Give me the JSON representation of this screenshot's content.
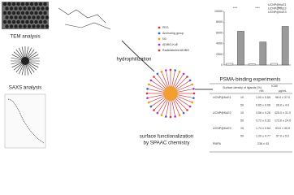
{
  "labels": {
    "tem": "TEM analysis",
    "saxs": "SAXS analysis",
    "hydro": "hydrophilization",
    "surf1": "surface functionalization",
    "surf2": "by SPAAC chemistry",
    "psma": "PSMA-binding experiments"
  },
  "legend": [
    "PEG",
    "Anchoring group",
    "N3",
    "ADIBO-KuE",
    "Radiolabeled ADIBO"
  ],
  "bar_chart": {
    "type": "bar",
    "categories": [
      null,
      null,
      null,
      null,
      null,
      null
    ],
    "values": [
      300,
      6300,
      200,
      4300,
      300,
      7200
    ],
    "colors": [
      "#ffffff",
      "#9a9a9a",
      "#ffffff",
      "#9a9a9a",
      "#ffffff",
      "#9a9a9a"
    ],
    "ylim": [
      0,
      10000
    ],
    "yticks": [
      0,
      2000,
      4000,
      6000,
      8000,
      10000
    ],
    "annotations": [
      "****",
      "****",
      "****"
    ],
    "legend": [
      "UCNP@KuE1",
      "UCNP@KuE2",
      "UCNP@KuE3"
    ]
  },
  "table": {
    "header": [
      "Surface density of ligands (%)",
      "IC50",
      "nM",
      "µg/mL"
    ],
    "rows": [
      [
        "UCNP@KuE1",
        "10",
        "1.00 ± 0.69",
        "96.0 ± 37.0"
      ],
      [
        "",
        "50",
        "0.65 ± 0.06",
        "28.0 ± 4.0"
      ],
      [
        "UCNP@KuE2",
        "10",
        "3.56 ± 0.26",
        "425.0 ± 31.0"
      ],
      [
        "",
        "50",
        "3.72 ± 0.32",
        "173.0 ± 24.0"
      ],
      [
        "UCNP@KuE3",
        "10",
        "1.74 ± 0.64",
        "93.0 ± 40.0"
      ],
      [
        "",
        "50",
        "1.20 ± 0.77",
        "57.0 ± 5.0"
      ],
      [
        "PMPA",
        "",
        "236 ± 43",
        ""
      ]
    ]
  }
}
